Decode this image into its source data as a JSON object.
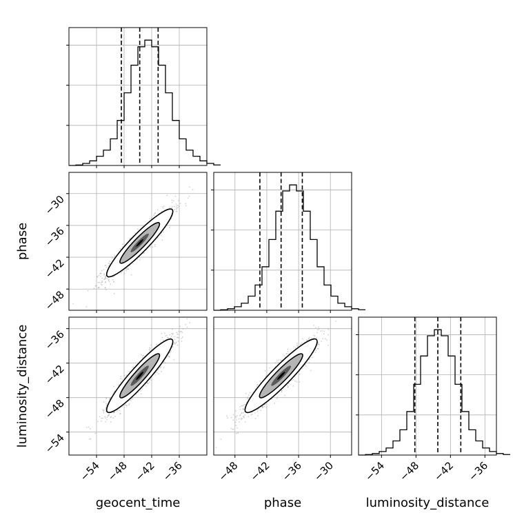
{
  "figure": {
    "title": ""
  },
  "colors": {
    "line": "#000000",
    "grid": "#b0b0b0",
    "sample": "#9a9a9a",
    "background": "#ffffff"
  },
  "chart_data": {
    "type": "corner",
    "grid": true,
    "parameters": [
      {
        "name": "geocent_time",
        "range": [
          -60,
          -30
        ],
        "quantiles": [
          -48.6,
          -44.6,
          -40.6
        ]
      },
      {
        "name": "phase",
        "range": [
          -52,
          -26
        ],
        "quantiles": [
          -43.3,
          -39.3,
          -35.3
        ]
      },
      {
        "name": "luminosity_distance",
        "range": [
          -58,
          -34
        ],
        "quantiles": [
          -48.2,
          -44.2,
          -40.2
        ]
      }
    ],
    "axes": {
      "geocent_time": {
        "ticks": [
          -54,
          -48,
          -42,
          -36
        ],
        "tick_labels": [
          "−54",
          "−48",
          "−42",
          "−36"
        ]
      },
      "phase_row": {
        "ticks": [
          -48,
          -42,
          -36,
          -30
        ],
        "tick_labels": [
          "−48",
          "−42",
          "−36",
          "−30"
        ]
      },
      "phase_col": {
        "ticks": [
          -48,
          -42,
          -36,
          -30
        ],
        "tick_labels": [
          "−48",
          "−42",
          "−36",
          "−30"
        ]
      },
      "luminosity_distance": {
        "ticks": [
          -54,
          -48,
          -42,
          -36
        ],
        "tick_labels": [
          "−54",
          "−48",
          "−42",
          "−36"
        ]
      }
    },
    "histograms": [
      {
        "parameter": "geocent_time",
        "bin_start": -60,
        "bin_width": 1.5,
        "counts": [
          0,
          1,
          4,
          9,
          18,
          30,
          52,
          88,
          142,
          196,
          232,
          245,
          232,
          196,
          142,
          88,
          52,
          30,
          18,
          9,
          4,
          1
        ]
      },
      {
        "parameter": "phase",
        "bin_start": -52,
        "bin_width": 1.3,
        "counts": [
          0,
          1,
          3,
          7,
          14,
          28,
          50,
          86,
          140,
          196,
          236,
          248,
          236,
          196,
          140,
          86,
          50,
          28,
          14,
          7,
          3,
          1
        ]
      },
      {
        "parameter": "luminosity_distance",
        "bin_start": -58,
        "bin_width": 1.2,
        "counts": [
          0,
          1,
          3,
          7,
          14,
          28,
          50,
          86,
          140,
          196,
          236,
          248,
          236,
          196,
          140,
          86,
          50,
          28,
          14,
          7,
          3,
          1
        ]
      }
    ],
    "pairs": [
      {
        "x": "geocent_time",
        "y": "phase",
        "center": [
          -44.6,
          -39.3
        ],
        "sd": [
          3.6,
          3.2
        ],
        "corr": 0.93
      },
      {
        "x": "geocent_time",
        "y": "luminosity_distance",
        "center": [
          -44.6,
          -44.2
        ],
        "sd": [
          3.6,
          3.2
        ],
        "corr": 0.93
      },
      {
        "x": "phase",
        "y": "luminosity_distance",
        "center": [
          -39.3,
          -44.2
        ],
        "sd": [
          3.4,
          3.2
        ],
        "corr": 0.93
      }
    ],
    "xlabels": [
      "geocent_time",
      "phase",
      "luminosity_distance"
    ],
    "ylabels": [
      "",
      "phase",
      "luminosity_distance"
    ]
  }
}
